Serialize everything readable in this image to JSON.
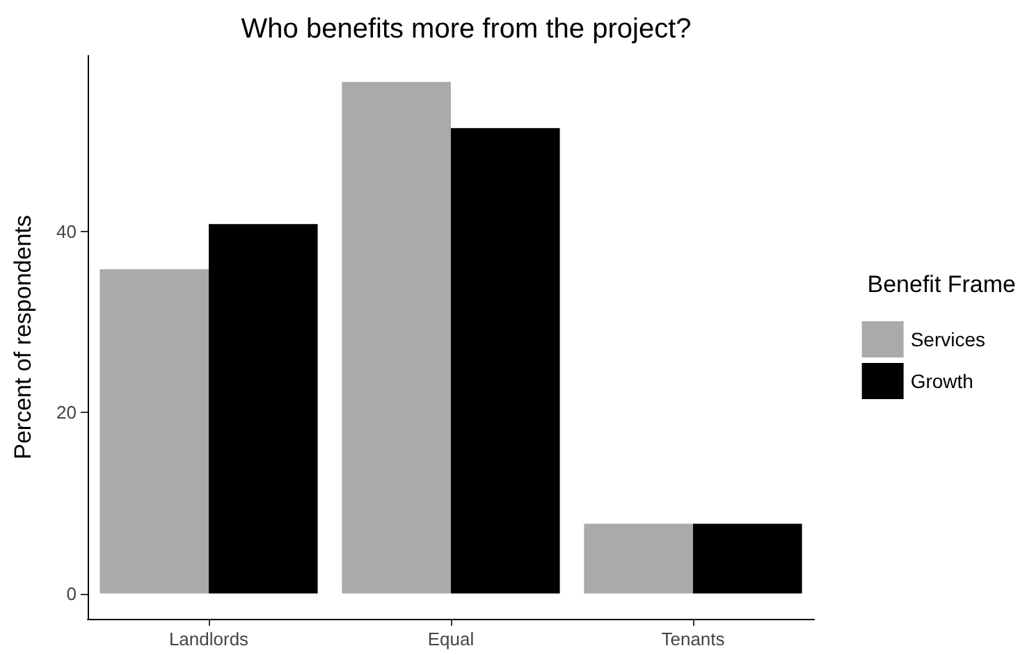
{
  "chart_data": {
    "type": "bar",
    "title": "Who benefits more from the project?",
    "ylabel": "Percent of respondents",
    "legend_title": "Benefit Frame",
    "categories": [
      "Landlords",
      "Equal",
      "Tenants"
    ],
    "series": [
      {
        "name": "Services",
        "color": "#aaaaaa",
        "values": [
          35.8,
          56.5,
          7.7
        ]
      },
      {
        "name": "Growth",
        "color": "#000000",
        "values": [
          40.8,
          51.4,
          7.7
        ]
      }
    ],
    "ylim": [
      -2.8,
      59.4
    ],
    "yticks": [
      0,
      20,
      40
    ],
    "grid": false,
    "legend": "right"
  }
}
